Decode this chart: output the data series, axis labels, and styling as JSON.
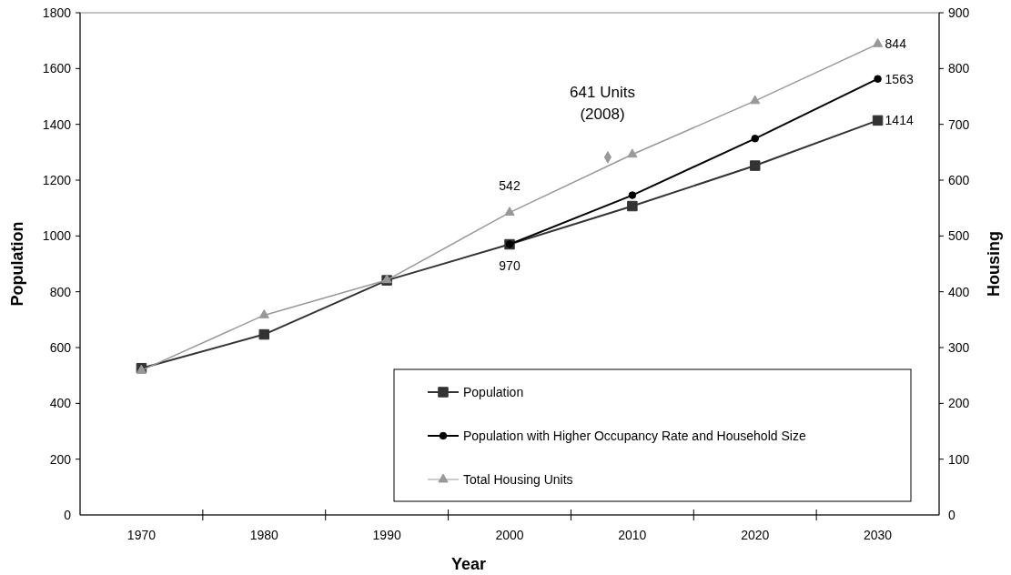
{
  "chart_data": {
    "type": "line",
    "xlabel": "Year",
    "ylabel": "Population",
    "y2label": "Housing",
    "x": [
      1970,
      1980,
      1990,
      2000,
      2010,
      2020,
      2030
    ],
    "xlim": [
      1965,
      2035
    ],
    "xticks": [
      {
        "value": 1970,
        "label": "1970"
      },
      {
        "value": 1975,
        "label": null
      },
      {
        "value": 1980,
        "label": "1980"
      },
      {
        "value": 1985,
        "label": null
      },
      {
        "value": 1990,
        "label": "1990"
      },
      {
        "value": 1995,
        "label": null
      },
      {
        "value": 2000,
        "label": "2000"
      },
      {
        "value": 2005,
        "label": null
      },
      {
        "value": 2010,
        "label": "2010"
      },
      {
        "value": 2015,
        "label": null
      },
      {
        "value": 2020,
        "label": "2020"
      },
      {
        "value": 2025,
        "label": null
      },
      {
        "value": 2030,
        "label": "2030"
      }
    ],
    "ylim": [
      0,
      1800
    ],
    "yticks": [
      0,
      200,
      400,
      600,
      800,
      1000,
      1200,
      1400,
      1600,
      1800
    ],
    "y2lim": [
      0,
      900
    ],
    "y2ticks": [
      0,
      100,
      200,
      300,
      400,
      500,
      600,
      700,
      800,
      900
    ],
    "grid": false,
    "legend": "bottom right",
    "series": [
      {
        "name": "Population",
        "color": "#333333",
        "marker": "square",
        "values": [
          526,
          647,
          841,
          970,
          1107,
          1252,
          1414
        ],
        "value_labels": [
          null,
          null,
          null,
          "970",
          null,
          null,
          "1414"
        ]
      },
      {
        "name": "Population with Higher Occupancy Rate and Household Size",
        "color": "#000000",
        "marker": "circle",
        "values": [
          null,
          null,
          null,
          970,
          1146,
          1349,
          1563
        ],
        "value_labels": [
          null,
          null,
          null,
          null,
          null,
          null,
          "1563"
        ]
      },
      {
        "name": "Total Housing Units",
        "color": "#999999",
        "marker": "triangle",
        "axis": "y2",
        "values": [
          259,
          358,
          421,
          542,
          646,
          742,
          844
        ],
        "value_labels": [
          null,
          null,
          null,
          "542",
          null,
          null,
          "844"
        ]
      },
      {
        "type": "scatter",
        "color": "#999999",
        "marker": "diamond",
        "axis": "y2",
        "x": [
          2008
        ],
        "values": [
          641
        ]
      }
    ],
    "annotations": [
      "641 Units\n(2008)"
    ]
  }
}
